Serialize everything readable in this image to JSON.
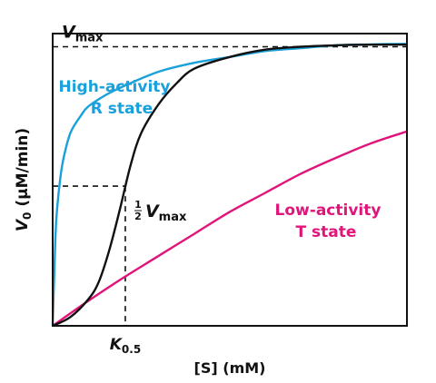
{
  "chart_data": {
    "type": "line",
    "xlabel": "[S] (mM)",
    "ylabel": {
      "main": "V",
      "sub": "0",
      "unit": "(μM/min)"
    },
    "x_range": [
      0,
      1
    ],
    "y_range": [
      0,
      1
    ],
    "ticks": {
      "x": [],
      "y": []
    },
    "grid": false,
    "colors": {
      "r_state": "#1AA0DB",
      "t_state": "#E0157A",
      "sigmoid": "#111111",
      "axes": "#111111"
    },
    "reference_lines": {
      "vmax": {
        "y": 0.955,
        "label_main": "V",
        "label_sub": "max"
      },
      "half_vmax": {
        "y": 0.478,
        "label_frac_num": "1",
        "label_frac_den": "2",
        "label_main": "V",
        "label_sub": "max"
      },
      "k05": {
        "x": 0.205,
        "label_main": "K",
        "label_sub": "0.5"
      }
    },
    "series": [
      {
        "key": "r_state",
        "label_lines": [
          "High-activity",
          "R state"
        ],
        "points": [
          [
            0,
            0
          ],
          [
            0.005,
            0.2
          ],
          [
            0.01,
            0.36
          ],
          [
            0.02,
            0.49
          ],
          [
            0.03,
            0.57
          ],
          [
            0.05,
            0.66
          ],
          [
            0.08,
            0.72
          ],
          [
            0.1,
            0.75
          ],
          [
            0.15,
            0.79
          ],
          [
            0.2,
            0.82
          ],
          [
            0.3,
            0.87
          ],
          [
            0.4,
            0.9
          ],
          [
            0.5,
            0.92
          ],
          [
            0.6,
            0.94
          ],
          [
            0.7,
            0.95
          ],
          [
            0.8,
            0.96
          ],
          [
            0.9,
            0.963
          ],
          [
            1.0,
            0.965
          ]
        ]
      },
      {
        "key": "sigmoid",
        "points": [
          [
            0,
            0
          ],
          [
            0.05,
            0.03
          ],
          [
            0.1,
            0.09
          ],
          [
            0.13,
            0.15
          ],
          [
            0.16,
            0.26
          ],
          [
            0.19,
            0.4
          ],
          [
            0.22,
            0.55
          ],
          [
            0.25,
            0.66
          ],
          [
            0.3,
            0.76
          ],
          [
            0.35,
            0.83
          ],
          [
            0.4,
            0.88
          ],
          [
            0.5,
            0.92
          ],
          [
            0.6,
            0.945
          ],
          [
            0.7,
            0.955
          ],
          [
            0.8,
            0.96
          ],
          [
            0.9,
            0.962
          ],
          [
            1.0,
            0.962
          ]
        ]
      },
      {
        "key": "t_state",
        "label_lines": [
          "Low-activity",
          "T state"
        ],
        "points": [
          [
            0,
            0
          ],
          [
            0.1,
            0.085
          ],
          [
            0.2,
            0.165
          ],
          [
            0.3,
            0.24
          ],
          [
            0.4,
            0.315
          ],
          [
            0.5,
            0.39
          ],
          [
            0.6,
            0.455
          ],
          [
            0.7,
            0.52
          ],
          [
            0.8,
            0.575
          ],
          [
            0.9,
            0.625
          ],
          [
            1.0,
            0.665
          ]
        ]
      }
    ]
  }
}
